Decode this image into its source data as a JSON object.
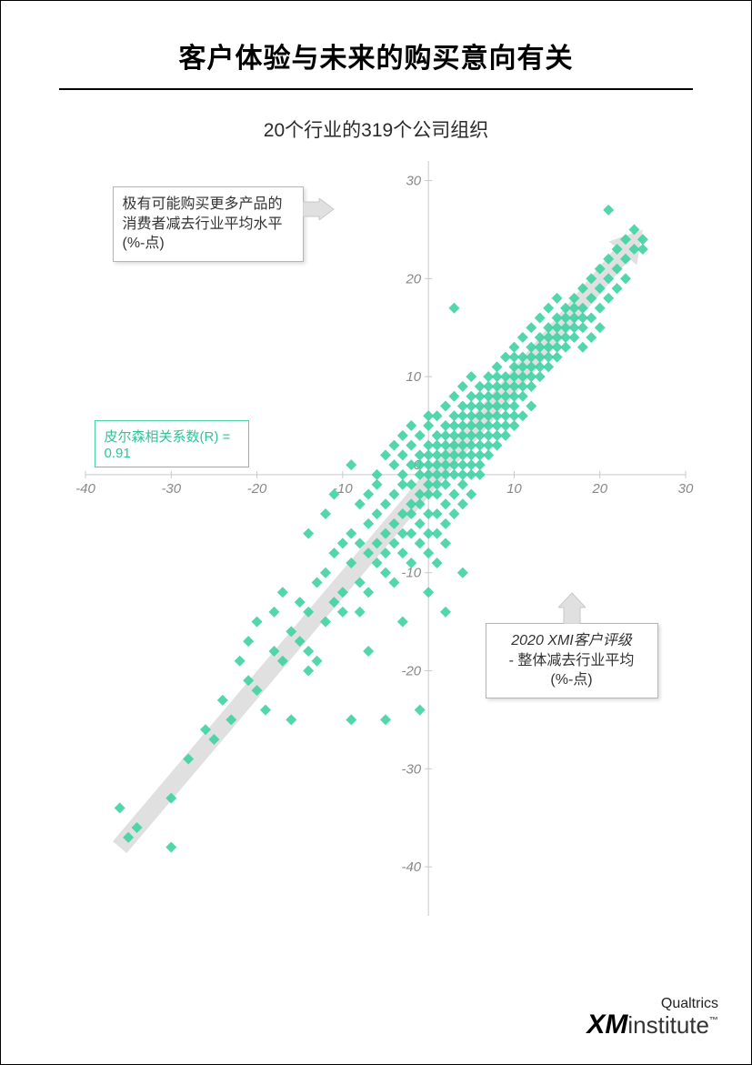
{
  "title": "客户体验与未来的购买意向有关",
  "subtitle": "20个行业的319个公司组织",
  "pearson_label": "皮尔森相关系数(R) = 0.91",
  "y_axis_callout": "极有可能购买更多产品的消费者减去行业平均水平 (%-点)",
  "x_axis_callout_line1": "2020 XMI客户评级",
  "x_axis_callout_line2": "- 整体减去行业平均",
  "x_axis_callout_line3": "(%-点)",
  "logo_top": "Qualtrics",
  "logo_main1": "XM",
  "logo_main2": "institute",
  "logo_tm": "™",
  "chart": {
    "type": "scatter",
    "xlim": [
      -40,
      30
    ],
    "ylim": [
      -45,
      32
    ],
    "xtick_step": 10,
    "ytick_step": 10,
    "marker_color": "#3fd1a2",
    "marker_size": 6,
    "axis_color": "#c9c9c9",
    "tick_label_color": "#888888",
    "tick_fontsize": 15,
    "trend_arrow_color": "#e0e0e0",
    "trend_arrow_width": 20,
    "trend_start": [
      -36,
      -38
    ],
    "trend_end": [
      25,
      25
    ],
    "background_color": "#ffffff",
    "points": [
      [
        -36,
        -34
      ],
      [
        -35,
        -37
      ],
      [
        -34,
        -36
      ],
      [
        -30,
        -38
      ],
      [
        -30,
        -33
      ],
      [
        -28,
        -29
      ],
      [
        -26,
        -26
      ],
      [
        -25,
        -27
      ],
      [
        -24,
        -23
      ],
      [
        -23,
        -25
      ],
      [
        -22,
        -19
      ],
      [
        -21,
        -21
      ],
      [
        -21,
        -17
      ],
      [
        -20,
        -22
      ],
      [
        -20,
        -15
      ],
      [
        -19,
        -24
      ],
      [
        -18,
        -18
      ],
      [
        -18,
        -14
      ],
      [
        -17,
        -19
      ],
      [
        -17,
        -12
      ],
      [
        -16,
        -16
      ],
      [
        -16,
        -25
      ],
      [
        -15,
        -17
      ],
      [
        -15,
        -13
      ],
      [
        -14,
        -14
      ],
      [
        -14,
        -18
      ],
      [
        -14,
        -20
      ],
      [
        -13,
        -11
      ],
      [
        -13,
        -19
      ],
      [
        -12,
        -15
      ],
      [
        -12,
        -10
      ],
      [
        -11,
        -13
      ],
      [
        -11,
        -8
      ],
      [
        -10,
        -12
      ],
      [
        -10,
        -14
      ],
      [
        -10,
        -7
      ],
      [
        -9,
        -9
      ],
      [
        -9,
        -25
      ],
      [
        -9,
        -6
      ],
      [
        -8,
        -11
      ],
      [
        -8,
        -7
      ],
      [
        -8,
        -3
      ],
      [
        -8,
        -14
      ],
      [
        -7,
        -8
      ],
      [
        -7,
        -5
      ],
      [
        -7,
        -12
      ],
      [
        -7,
        -2
      ],
      [
        -6,
        -9
      ],
      [
        -6,
        -4
      ],
      [
        -6,
        -7
      ],
      [
        -6,
        -1
      ],
      [
        -6,
        0
      ],
      [
        -5,
        -6
      ],
      [
        -5,
        -3
      ],
      [
        -5,
        -10
      ],
      [
        -5,
        2
      ],
      [
        -5,
        -8
      ],
      [
        -4,
        -5
      ],
      [
        -4,
        -2
      ],
      [
        -4,
        -7
      ],
      [
        -4,
        1
      ],
      [
        -4,
        -11
      ],
      [
        -4,
        3
      ],
      [
        -3,
        -4
      ],
      [
        -3,
        -1
      ],
      [
        -3,
        -8
      ],
      [
        -3,
        2
      ],
      [
        -3,
        -6
      ],
      [
        -3,
        4
      ],
      [
        -3,
        0
      ],
      [
        -2,
        -3
      ],
      [
        -2,
        -1
      ],
      [
        -2,
        1
      ],
      [
        -2,
        -6
      ],
      [
        -2,
        3
      ],
      [
        -2,
        -9
      ],
      [
        -2,
        5
      ],
      [
        -2,
        -4
      ],
      [
        -1,
        -2
      ],
      [
        -1,
        0
      ],
      [
        -1,
        2
      ],
      [
        -1,
        -5
      ],
      [
        -1,
        4
      ],
      [
        -1,
        -7
      ],
      [
        -1,
        -3
      ],
      [
        -1,
        1
      ],
      [
        0,
        -1
      ],
      [
        0,
        1
      ],
      [
        0,
        3
      ],
      [
        0,
        -4
      ],
      [
        0,
        5
      ],
      [
        0,
        -6
      ],
      [
        0,
        -2
      ],
      [
        0,
        2
      ],
      [
        0,
        0
      ],
      [
        0,
        -8
      ],
      [
        0,
        -12
      ],
      [
        0,
        6
      ],
      [
        1,
        0
      ],
      [
        1,
        2
      ],
      [
        1,
        -2
      ],
      [
        1,
        4
      ],
      [
        1,
        -4
      ],
      [
        1,
        6
      ],
      [
        1,
        -6
      ],
      [
        1,
        1
      ],
      [
        1,
        3
      ],
      [
        1,
        -1
      ],
      [
        1,
        -9
      ],
      [
        2,
        1
      ],
      [
        2,
        3
      ],
      [
        2,
        -1
      ],
      [
        2,
        5
      ],
      [
        2,
        -3
      ],
      [
        2,
        7
      ],
      [
        2,
        0
      ],
      [
        2,
        2
      ],
      [
        2,
        -5
      ],
      [
        2,
        4
      ],
      [
        2,
        -7
      ],
      [
        3,
        2
      ],
      [
        3,
        4
      ],
      [
        3,
        0
      ],
      [
        3,
        6
      ],
      [
        3,
        -2
      ],
      [
        3,
        8
      ],
      [
        3,
        1
      ],
      [
        3,
        3
      ],
      [
        3,
        -4
      ],
      [
        3,
        5
      ],
      [
        3,
        17
      ],
      [
        4,
        3
      ],
      [
        4,
        5
      ],
      [
        4,
        1
      ],
      [
        4,
        7
      ],
      [
        4,
        -1
      ],
      [
        4,
        9
      ],
      [
        4,
        2
      ],
      [
        4,
        4
      ],
      [
        4,
        0
      ],
      [
        4,
        6
      ],
      [
        4,
        -3
      ],
      [
        5,
        4
      ],
      [
        5,
        6
      ],
      [
        5,
        2
      ],
      [
        5,
        8
      ],
      [
        5,
        0
      ],
      [
        5,
        10
      ],
      [
        5,
        3
      ],
      [
        5,
        5
      ],
      [
        5,
        1
      ],
      [
        5,
        -2
      ],
      [
        5,
        7
      ],
      [
        6,
        5
      ],
      [
        6,
        7
      ],
      [
        6,
        3
      ],
      [
        6,
        9
      ],
      [
        6,
        1
      ],
      [
        6,
        4
      ],
      [
        6,
        6
      ],
      [
        6,
        2
      ],
      [
        6,
        8
      ],
      [
        6,
        0
      ],
      [
        7,
        6
      ],
      [
        7,
        8
      ],
      [
        7,
        4
      ],
      [
        7,
        10
      ],
      [
        7,
        2
      ],
      [
        7,
        5
      ],
      [
        7,
        7
      ],
      [
        7,
        3
      ],
      [
        7,
        9
      ],
      [
        8,
        7
      ],
      [
        8,
        9
      ],
      [
        8,
        5
      ],
      [
        8,
        11
      ],
      [
        8,
        3
      ],
      [
        8,
        6
      ],
      [
        8,
        8
      ],
      [
        8,
        4
      ],
      [
        8,
        10
      ],
      [
        9,
        8
      ],
      [
        9,
        10
      ],
      [
        9,
        6
      ],
      [
        9,
        12
      ],
      [
        9,
        4
      ],
      [
        9,
        7
      ],
      [
        9,
        9
      ],
      [
        9,
        5
      ],
      [
        10,
        9
      ],
      [
        10,
        11
      ],
      [
        10,
        7
      ],
      [
        10,
        13
      ],
      [
        10,
        5
      ],
      [
        10,
        8
      ],
      [
        10,
        10
      ],
      [
        10,
        6
      ],
      [
        10,
        12
      ],
      [
        11,
        10
      ],
      [
        11,
        12
      ],
      [
        11,
        8
      ],
      [
        11,
        14
      ],
      [
        11,
        6
      ],
      [
        11,
        9
      ],
      [
        11,
        11
      ],
      [
        12,
        11
      ],
      [
        12,
        13
      ],
      [
        12,
        9
      ],
      [
        12,
        15
      ],
      [
        12,
        7
      ],
      [
        12,
        10
      ],
      [
        12,
        12
      ],
      [
        13,
        12
      ],
      [
        13,
        14
      ],
      [
        13,
        10
      ],
      [
        13,
        16
      ],
      [
        13,
        11
      ],
      [
        13,
        13
      ],
      [
        14,
        13
      ],
      [
        14,
        15
      ],
      [
        14,
        11
      ],
      [
        14,
        17
      ],
      [
        14,
        12
      ],
      [
        14,
        14
      ],
      [
        15,
        14
      ],
      [
        15,
        16
      ],
      [
        15,
        12
      ],
      [
        15,
        18
      ],
      [
        15,
        13
      ],
      [
        15,
        15
      ],
      [
        16,
        15
      ],
      [
        16,
        17
      ],
      [
        16,
        13
      ],
      [
        16,
        14
      ],
      [
        16,
        16
      ],
      [
        17,
        16
      ],
      [
        17,
        18
      ],
      [
        17,
        14
      ],
      [
        17,
        15
      ],
      [
        17,
        17
      ],
      [
        18,
        17
      ],
      [
        18,
        19
      ],
      [
        18,
        15
      ],
      [
        18,
        16
      ],
      [
        18,
        13
      ],
      [
        19,
        18
      ],
      [
        19,
        20
      ],
      [
        19,
        16
      ],
      [
        19,
        14
      ],
      [
        20,
        19
      ],
      [
        20,
        21
      ],
      [
        20,
        17
      ],
      [
        20,
        15
      ],
      [
        21,
        20
      ],
      [
        21,
        22
      ],
      [
        21,
        18
      ],
      [
        21,
        27
      ],
      [
        22,
        21
      ],
      [
        22,
        23
      ],
      [
        22,
        19
      ],
      [
        23,
        22
      ],
      [
        23,
        24
      ],
      [
        23,
        20
      ],
      [
        24,
        23
      ],
      [
        24,
        25
      ],
      [
        25,
        24
      ],
      [
        25,
        23
      ],
      [
        -5,
        -25
      ],
      [
        -1,
        -24
      ],
      [
        2,
        -14
      ],
      [
        4,
        -10
      ],
      [
        -7,
        -18
      ],
      [
        -3,
        -15
      ],
      [
        -12,
        -4
      ],
      [
        -14,
        -6
      ],
      [
        -9,
        1
      ],
      [
        -11,
        -2
      ]
    ]
  }
}
